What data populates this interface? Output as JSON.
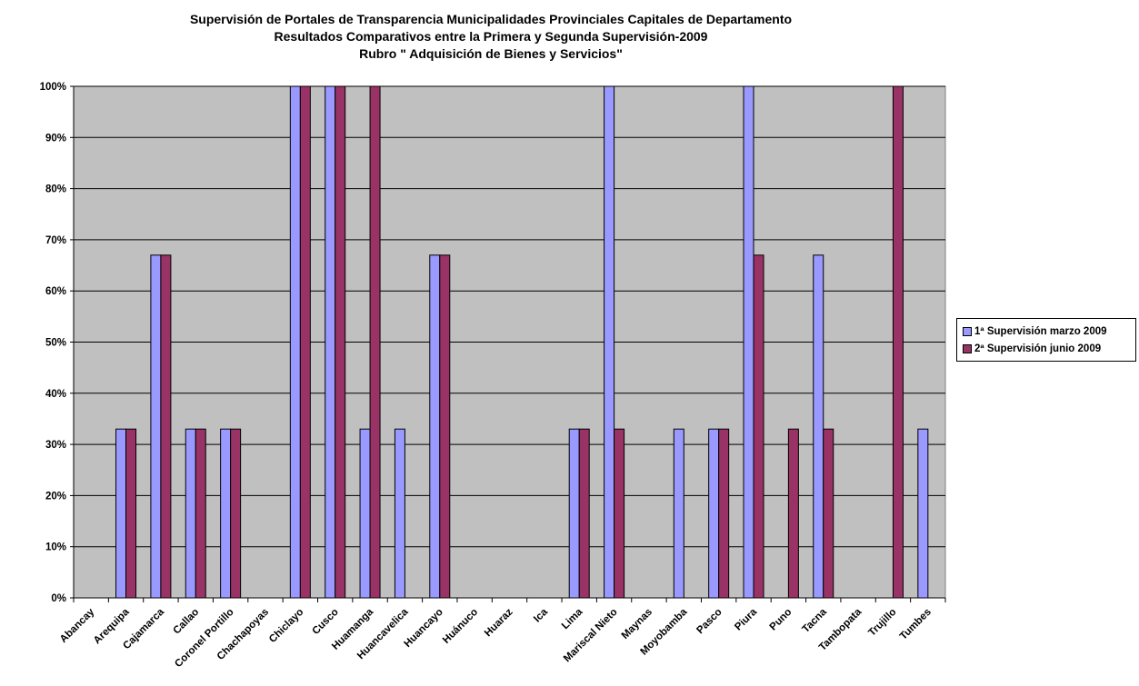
{
  "chart_data": {
    "type": "bar",
    "title": [
      "Supervisión de Portales de Transparencia Municipalidades Provinciales Capitales de Departamento",
      "Resultados Comparativos entre la Primera y Segunda Supervisión-2009",
      "Rubro \" Adquisición de Bienes y Servicios\""
    ],
    "xlabel": "",
    "ylabel": "",
    "ylim": [
      0,
      100
    ],
    "ytick_format": "percent",
    "yticks": [
      "0%",
      "10%",
      "20%",
      "30%",
      "40%",
      "50%",
      "60%",
      "70%",
      "80%",
      "90%",
      "100%"
    ],
    "grid": true,
    "legend_position": "right",
    "categories": [
      "Abancay",
      "Arequipa",
      "Cajamarca",
      "Callao",
      "Coronel Portillo",
      "Chachapoyas",
      "Chiclayo",
      "Cusco",
      "Huamanga",
      "Huancavelica",
      "Huancayo",
      "Huánuco",
      "Huaraz",
      "Ica",
      "Lima",
      "Mariscal Nieto",
      "Maynas",
      "Moyobamba",
      "Pasco",
      "Piura",
      "Puno",
      "Tacna",
      "Tambopata",
      "Trujillo",
      "Tumbes"
    ],
    "series": [
      {
        "name": "1ª Supervisión marzo 2009",
        "color": "#9999FF",
        "values": [
          0,
          33,
          67,
          33,
          33,
          0,
          100,
          100,
          33,
          33,
          67,
          0,
          0,
          0,
          33,
          100,
          0,
          33,
          33,
          100,
          0,
          67,
          0,
          0,
          33
        ]
      },
      {
        "name": "2ª Supervisión junio 2009",
        "color": "#993366",
        "values": [
          0,
          33,
          67,
          33,
          33,
          0,
          100,
          100,
          100,
          0,
          67,
          0,
          0,
          0,
          33,
          33,
          0,
          0,
          33,
          67,
          33,
          33,
          0,
          100,
          0
        ]
      }
    ],
    "plot_background": "#C0C0C0"
  }
}
